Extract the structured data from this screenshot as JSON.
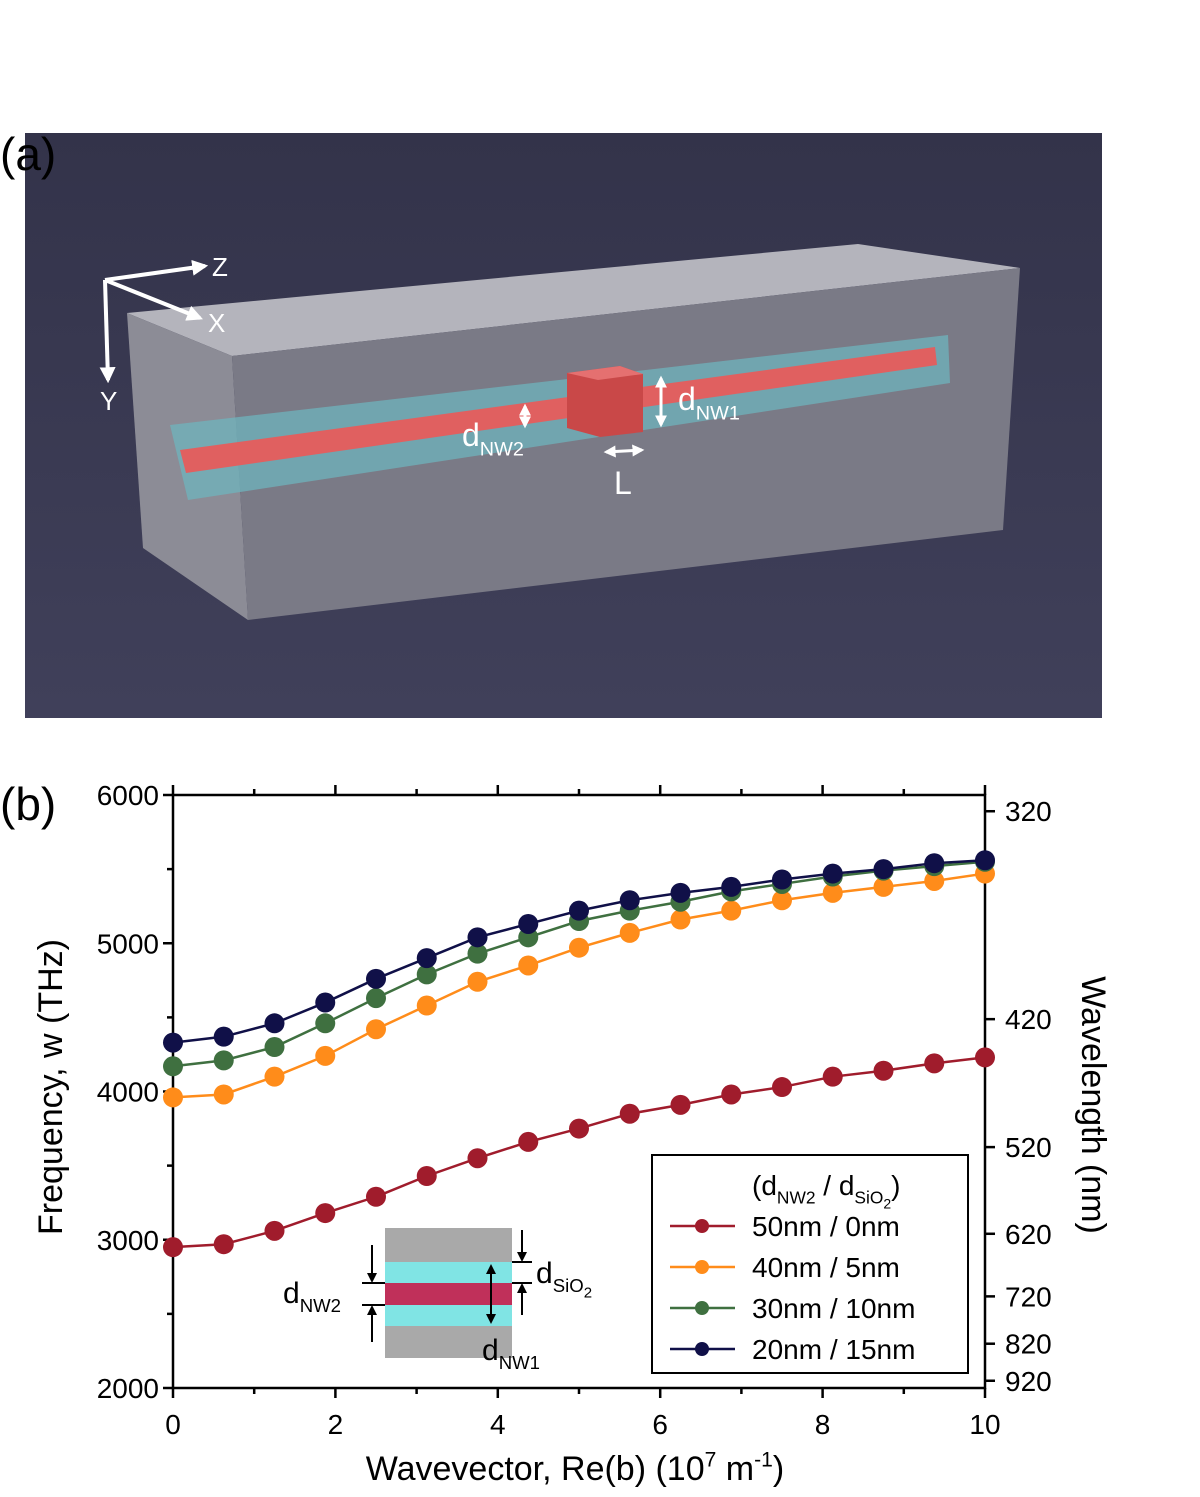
{
  "panel_labels": [
    "(a)",
    "(b)"
  ],
  "panel_a": {
    "axes": [
      "Z",
      "X",
      "Y"
    ],
    "d_nw2": {
      "base": "d",
      "sub": "NW2"
    },
    "d_nw1": {
      "base": "d",
      "sub": "NW1"
    },
    "length": "L"
  },
  "chart_data": {
    "type": "line",
    "xlabel": [
      "Wavevector, Re(b) (10",
      "7",
      " m",
      "-1",
      ")"
    ],
    "ylabel": "Frequency, w (THz)",
    "y2label": "Wavelength (nm)",
    "x": [
      0,
      0.625,
      1.25,
      1.875,
      2.5,
      3.125,
      3.75,
      4.375,
      5,
      5.625,
      6.25,
      6.875,
      7.5,
      8.125,
      8.75,
      9.375,
      10
    ],
    "series": [
      {
        "name": "50nm / 0nm",
        "color": "#a01c2c",
        "values": [
          2950,
          2970,
          3060,
          3180,
          3290,
          3430,
          3550,
          3660,
          3750,
          3850,
          3910,
          3980,
          4030,
          4100,
          4140,
          4190,
          4230
        ]
      },
      {
        "name": "40nm / 5nm",
        "color": "#ff8c1a",
        "values": [
          3960,
          3980,
          4100,
          4240,
          4420,
          4580,
          4740,
          4850,
          4970,
          5070,
          5160,
          5220,
          5290,
          5340,
          5380,
          5420,
          5470
        ]
      },
      {
        "name": "30nm / 10nm",
        "color": "#3f7040",
        "values": [
          4170,
          4210,
          4300,
          4460,
          4630,
          4790,
          4930,
          5040,
          5150,
          5220,
          5280,
          5350,
          5400,
          5450,
          5490,
          5520,
          5550
        ]
      },
      {
        "name": "20nm / 15nm",
        "color": "#101048",
        "values": [
          4330,
          4370,
          4460,
          4600,
          4760,
          4900,
          5040,
          5130,
          5220,
          5290,
          5340,
          5380,
          5430,
          5470,
          5500,
          5540,
          5560
        ]
      }
    ],
    "xlim": [
      0,
      10
    ],
    "xticks": [
      0,
      2,
      4,
      6,
      8,
      10
    ],
    "ylim": [
      2000,
      6000
    ],
    "yticks": [
      2000,
      3000,
      4000,
      5000,
      6000
    ],
    "y2lim": [
      942.48,
      314.16
    ],
    "y2scale": "reciprocal",
    "y2ticks": [
      320,
      420,
      520,
      620,
      720,
      820,
      920
    ],
    "grid": false,
    "legend": {
      "title": [
        "(d",
        "NW2",
        " / d",
        "SiO",
        "2",
        ")"
      ],
      "position": "lower right"
    },
    "inset": {
      "d_nw2": {
        "base": "d",
        "sub": "NW2"
      },
      "d_sio2": {
        "base": "d",
        "sub": "SiO",
        "subsub": "2"
      },
      "d_nw1": {
        "base": "d",
        "sub": "NW1"
      }
    }
  }
}
